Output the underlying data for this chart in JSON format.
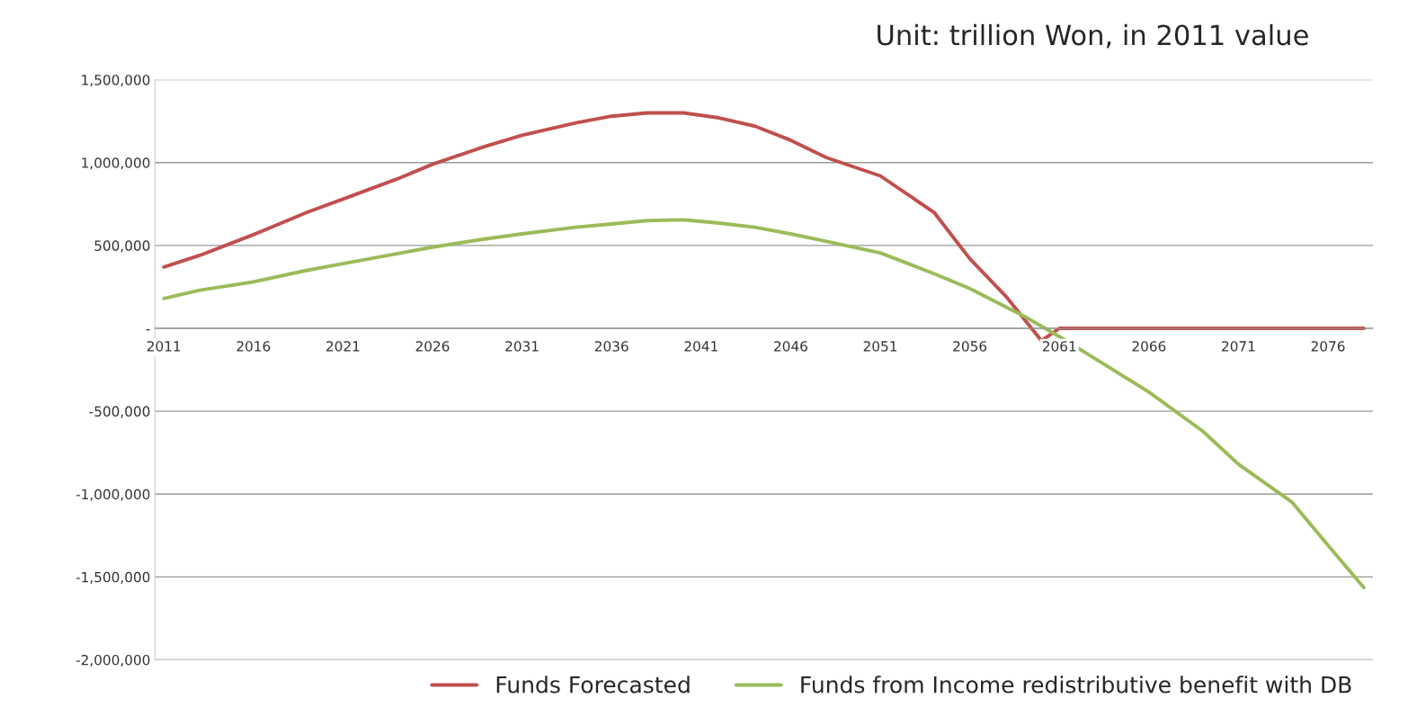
{
  "chart_data": {
    "type": "line",
    "annotations": [
      "Unit: trillion Won, in 2011 value"
    ],
    "series": [
      {
        "name": "Funds Forecasted",
        "color": "#c0504d",
        "x": [
          2011,
          2013,
          2016,
          2019,
          2021,
          2024,
          2026,
          2029,
          2031,
          2034,
          2036,
          2038,
          2040,
          2042,
          2044,
          2046,
          2048,
          2051,
          2054,
          2056,
          2058,
          2060,
          2061,
          2078
        ],
        "values": [
          370000,
          440000,
          565000,
          700000,
          780000,
          900000,
          990000,
          1100000,
          1165000,
          1240000,
          1280000,
          1300000,
          1300000,
          1270000,
          1220000,
          1135000,
          1030000,
          920000,
          700000,
          420000,
          195000,
          -75000,
          0,
          0
        ]
      },
      {
        "name": "Funds from Income redistributive benefit with DB",
        "color": "#9bbb59",
        "x": [
          2011,
          2013,
          2016,
          2019,
          2021,
          2024,
          2026,
          2029,
          2031,
          2034,
          2036,
          2038,
          2040,
          2042,
          2044,
          2046,
          2048,
          2051,
          2054,
          2056,
          2059,
          2061,
          2064,
          2066,
          2069,
          2071,
          2074,
          2076,
          2078
        ],
        "values": [
          180000,
          230000,
          280000,
          350000,
          390000,
          450000,
          490000,
          540000,
          570000,
          610000,
          630000,
          650000,
          655000,
          635000,
          610000,
          570000,
          525000,
          455000,
          330000,
          240000,
          75000,
          -50000,
          -250000,
          -385000,
          -620000,
          -820000,
          -1050000,
          -1310000,
          -1565000
        ]
      }
    ],
    "xlim": [
      2010.5,
      2078.5
    ],
    "xticks": [
      2011,
      2016,
      2021,
      2026,
      2031,
      2036,
      2041,
      2046,
      2051,
      2056,
      2061,
      2066,
      2071,
      2076
    ],
    "ylim": [
      -2000000,
      1500000
    ],
    "yticks": [
      {
        "value": -2000000,
        "label": "-2,000,000"
      },
      {
        "value": -1500000,
        "label": "-1,500,000"
      },
      {
        "value": -1000000,
        "label": "-1,000,000"
      },
      {
        "value": -500000,
        "label": "-500,000"
      },
      {
        "value": 0,
        "label": "-"
      },
      {
        "value": 500000,
        "label": "500,000"
      },
      {
        "value": 1000000,
        "label": "1,000,000"
      },
      {
        "value": 1500000,
        "label": "1,500,000"
      }
    ],
    "grid": "y",
    "legend": "bottom"
  }
}
